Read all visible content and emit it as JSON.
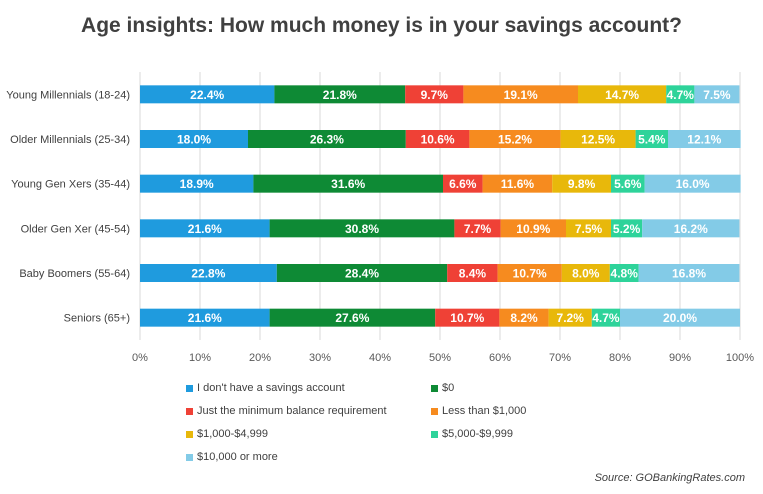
{
  "chart_data": {
    "type": "bar",
    "orientation": "horizontal",
    "stacked": "percent",
    "title": "Age insights: How much money is in your savings account?",
    "categories": [
      "Young Millennials (18-24)",
      "Older Millennials (25-34)",
      "Young Gen Xers (35-44)",
      "Older Gen Xer (45-54)",
      "Baby Boomers (55-64)",
      "Seniors (65+)"
    ],
    "series": [
      {
        "name": "I don't have a savings account",
        "color": "#1f9bde",
        "values": [
          22.4,
          18.0,
          18.9,
          21.6,
          22.8,
          21.6
        ]
      },
      {
        "name": "$0",
        "color": "#0e8a35",
        "values": [
          21.8,
          26.3,
          31.6,
          30.8,
          28.4,
          27.6
        ]
      },
      {
        "name": "Just the minimum balance requirement",
        "color": "#ef4136",
        "values": [
          9.7,
          10.6,
          6.6,
          7.7,
          8.4,
          10.7
        ]
      },
      {
        "name": "Less than $1,000",
        "color": "#f68b1f",
        "values": [
          19.1,
          15.2,
          11.6,
          10.9,
          10.7,
          8.2
        ]
      },
      {
        "name": "$1,000-$4,999",
        "color": "#e8b80b",
        "values": [
          14.7,
          12.5,
          9.8,
          7.5,
          8.0,
          7.2
        ]
      },
      {
        "name": "$5,000-$9,999",
        "color": "#2ed39a",
        "values": [
          4.7,
          5.4,
          5.6,
          5.2,
          4.8,
          4.7
        ]
      },
      {
        "name": "$10,000 or more",
        "color": "#83cbe7",
        "values": [
          7.5,
          12.1,
          16.0,
          16.2,
          16.8,
          20.0
        ]
      }
    ],
    "x_ticks": [
      "0%",
      "10%",
      "20%",
      "30%",
      "40%",
      "50%",
      "60%",
      "70%",
      "80%",
      "90%",
      "100%"
    ],
    "xlim": [
      0,
      100
    ],
    "value_label_suffix": "%",
    "grid": "vertical",
    "legend_position": "bottom"
  },
  "source": "Source: GOBankingRates.com"
}
